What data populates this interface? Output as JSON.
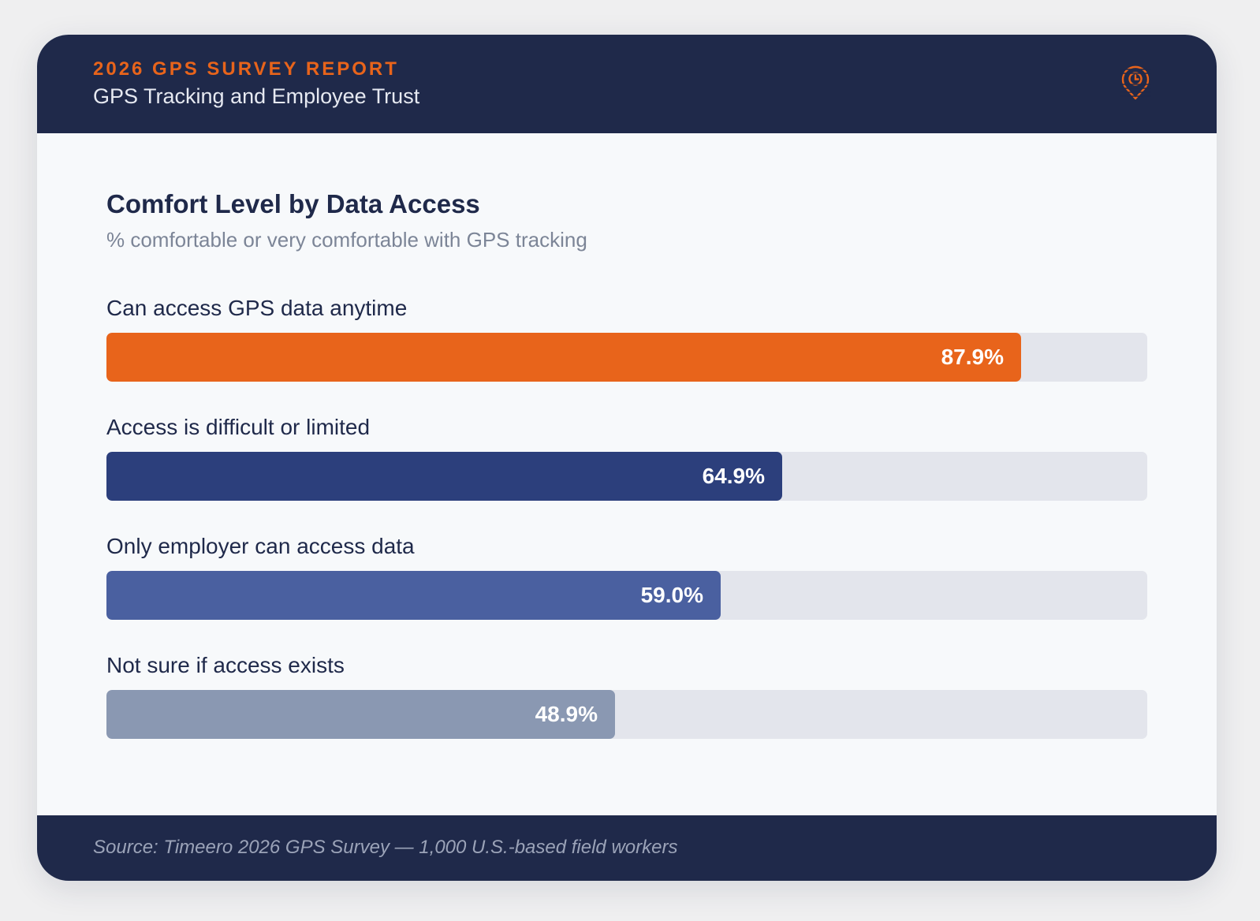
{
  "header": {
    "eyebrow": "2026 GPS SURVEY REPORT",
    "subtitle": "GPS Tracking and Employee Trust",
    "logo_icon": "location-pin-clock-icon"
  },
  "chart_data": {
    "type": "bar",
    "orientation": "horizontal",
    "title": "Comfort Level by Data Access",
    "subtitle": "% comfortable or very comfortable with GPS tracking",
    "categories": [
      "Can access GPS data anytime",
      "Access is difficult or limited",
      "Only employer can access data",
      "Not sure if access exists"
    ],
    "values": [
      87.9,
      64.9,
      59.0,
      48.9
    ],
    "value_labels": [
      "87.9%",
      "64.9%",
      "59.0%",
      "48.9%"
    ],
    "colors": [
      "#e8641b",
      "#2c3f7c",
      "#4a60a0",
      "#8a98b2"
    ],
    "xlim": [
      0,
      100
    ],
    "grid": false,
    "legend": "none"
  },
  "footer": {
    "source": "Source: Timeero 2026 GPS Survey — 1,000 U.S.-based field workers"
  },
  "colors": {
    "navy": "#1f294a",
    "accent": "#e8641b",
    "track": "#e3e5ec",
    "background": "#f7f9fb"
  }
}
